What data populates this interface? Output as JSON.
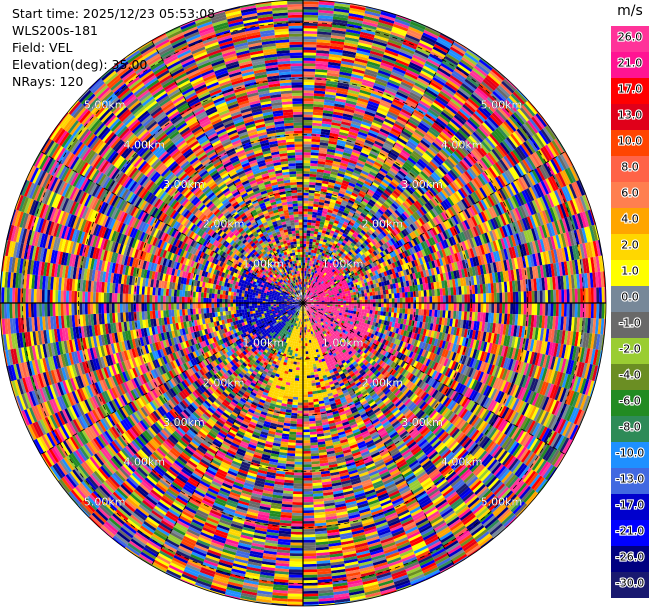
{
  "info": {
    "start_time": "Start time: 2025/12/23 05:53:08",
    "site": "WLS200s-181",
    "field": "Field: VEL",
    "elevation": "Elevation(deg): 35.00",
    "nrays": "NRays: 120"
  },
  "chart_data": {
    "type": "heatmap",
    "projection": "polar (PPI)",
    "rays": 120,
    "range_rings": [
      {
        "label": "1.00km",
        "value": 1.0
      },
      {
        "label": "2.00km",
        "value": 2.0
      },
      {
        "label": "3.00km",
        "value": 3.0
      },
      {
        "label": "4.00km",
        "value": 4.0
      },
      {
        "label": "5.00km",
        "value": 5.0
      }
    ],
    "max_range_km": 5.4,
    "colorbar": {
      "unit": "m/s",
      "ticks": [
        "26.0",
        "21.0",
        "17.0",
        "13.0",
        "10.0",
        "8.0",
        "6.0",
        "4.0",
        "2.0",
        "1.0",
        "0.0",
        "-1.0",
        "-2.0",
        "-4.0",
        "-6.0",
        "-8.0",
        "-10.0",
        "-13.0",
        "-17.0",
        "-21.0",
        "-26.0",
        "-30.0"
      ],
      "colors": [
        "#ff3399",
        "#ff1493",
        "#ff0000",
        "#e0001a",
        "#ff4500",
        "#ff6347",
        "#ff7f50",
        "#ffa500",
        "#ffd700",
        "#ffff00",
        "#778899",
        "#696969",
        "#9acd32",
        "#6b8e23",
        "#228b22",
        "#2e8b57",
        "#1e90ff",
        "#4169e1",
        "#0000cd",
        "#0000ff",
        "#000080",
        "#191970"
      ]
    },
    "near_field": [
      {
        "sector": "east",
        "from_deg": 90,
        "to_deg": 160,
        "r_to_km": 1.3,
        "value": 26.0
      },
      {
        "sector": "northeast",
        "from_deg": 20,
        "to_deg": 90,
        "r_to_km": 0.9,
        "value": 21.0
      },
      {
        "sector": "south",
        "from_deg": 160,
        "to_deg": 200,
        "r_to_km": 1.8,
        "value": 2.0
      },
      {
        "sector": "west",
        "from_deg": 220,
        "to_deg": 300,
        "r_to_km": 1.2,
        "value": -17.0
      },
      {
        "sector": "southwest",
        "from_deg": 190,
        "to_deg": 230,
        "r_to_km": 1.0,
        "value": -8.0
      }
    ]
  }
}
